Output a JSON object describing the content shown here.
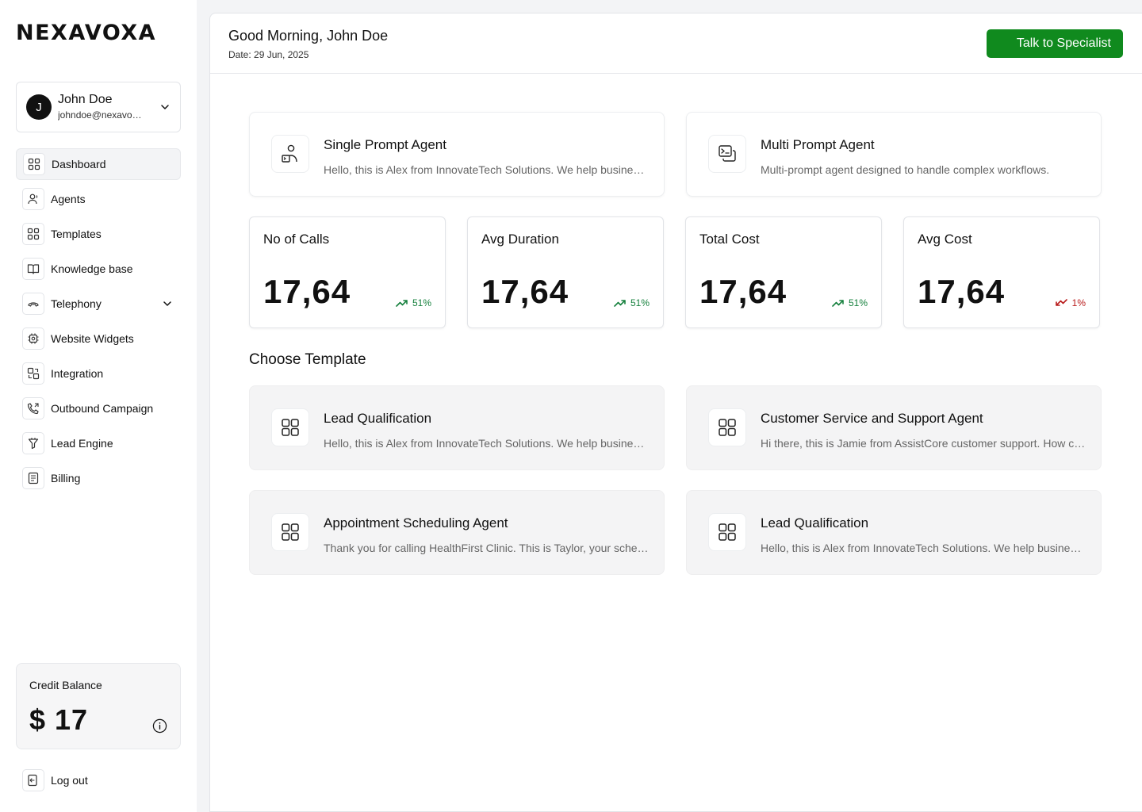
{
  "sidebar": {
    "logo": "NEXAVOXA",
    "user": {
      "initial": "J",
      "name": "John Doe",
      "email": "johndoe@nexavoxa.com"
    },
    "nav": [
      {
        "label": "Dashboard",
        "icon": "grid-icon",
        "active": true
      },
      {
        "label": "Agents",
        "icon": "agent-icon"
      },
      {
        "label": "Templates",
        "icon": "grid-icon"
      },
      {
        "label": "Knowledge base",
        "icon": "book-icon"
      },
      {
        "label": "Telephony",
        "icon": "phone-icon",
        "expandable": true
      },
      {
        "label": "Website Widgets",
        "icon": "chip-icon"
      },
      {
        "label": "Integration",
        "icon": "integration-icon"
      },
      {
        "label": "Outbound Campaign",
        "icon": "phone-outgoing-icon"
      },
      {
        "label": "Lead Engine",
        "icon": "funnel-icon"
      },
      {
        "label": "Billing",
        "icon": "receipt-icon"
      }
    ],
    "credit": {
      "label": "Credit Balance",
      "value": "$ 17"
    },
    "logout": "Log out"
  },
  "header": {
    "greeting": "Good Morning, John Doe",
    "date": "Date: 29 Jun, 2025",
    "cta": "Talk to Specialist"
  },
  "agents": [
    {
      "title": "Single Prompt Agent",
      "desc": "Hello, this is Alex from InnovateTech Solutions. We help businesses grow."
    },
    {
      "title": "Multi Prompt Agent",
      "desc": "Multi-prompt agent designed to handle complex workflows."
    }
  ],
  "stats": [
    {
      "label": "No of Calls",
      "value": "17,64",
      "trend": "51%",
      "direction": "up"
    },
    {
      "label": "Avg Duration",
      "value": "17,64",
      "trend": "51%",
      "direction": "up"
    },
    {
      "label": "Total Cost",
      "value": "17,64",
      "trend": "51%",
      "direction": "up"
    },
    {
      "label": "Avg Cost",
      "value": "17,64",
      "trend": "1%",
      "direction": "down"
    }
  ],
  "templates_section": {
    "title": "Choose Template",
    "items": [
      {
        "title": "Lead Qualification",
        "desc": "Hello, this is Alex from InnovateTech Solutions. We help businesses grow."
      },
      {
        "title": "Customer Service and Support Agent",
        "desc": "Hi there, this is Jamie from AssistCore customer support. How can I help?"
      },
      {
        "title": "Appointment Scheduling Agent",
        "desc": "Thank you for calling HealthFirst Clinic. This is Taylor, your scheduling assistant."
      },
      {
        "title": "Lead Qualification",
        "desc": "Hello, this is Alex from InnovateTech Solutions. We help businesses grow."
      }
    ]
  },
  "colors": {
    "accent": "#108a1e",
    "trend_up": "#15803d",
    "trend_down": "#b91c1c"
  }
}
